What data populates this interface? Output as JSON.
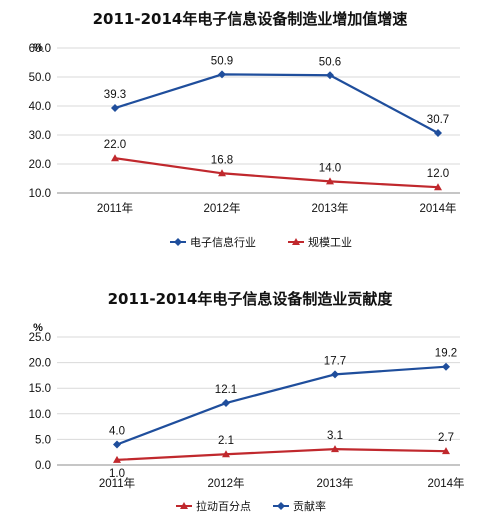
{
  "chart_data": [
    {
      "type": "line",
      "title": "2011-2014年电子信息设备制造业增加值增速",
      "unit": "%",
      "categories": [
        "2011年",
        "2012年",
        "2013年",
        "2014年"
      ],
      "ylim": [
        10,
        60
      ],
      "yticks": [
        "10.0",
        "20.0",
        "30.0",
        "40.0",
        "50.0",
        "60.0"
      ],
      "series": [
        {
          "name": "电子信息行业",
          "color": "#1f4e9c",
          "marker": "diamond",
          "values": [
            39.3,
            50.9,
            50.6,
            30.7
          ],
          "labels": [
            "39.3",
            "50.9",
            "50.6",
            "30.7"
          ]
        },
        {
          "name": "规模工业",
          "color": "#c0282d",
          "marker": "triangle",
          "values": [
            22.0,
            16.8,
            14.0,
            12.0
          ],
          "labels": [
            "22.0",
            "16.8",
            "14.0",
            "12.0"
          ]
        }
      ],
      "legend_order": [
        0,
        1
      ],
      "legend": "bottom",
      "grid": true
    },
    {
      "type": "line",
      "title": "2011-2014年电子信息设备制造业贡献度",
      "unit": "%",
      "categories": [
        "2011年",
        "2012年",
        "2013年",
        "2014年"
      ],
      "ylim": [
        0,
        25
      ],
      "yticks": [
        "0.0",
        "5.0",
        "10.0",
        "15.0",
        "20.0",
        "25.0"
      ],
      "series": [
        {
          "name": "贡献率",
          "color": "#1f4e9c",
          "marker": "diamond",
          "values": [
            4.0,
            12.1,
            17.7,
            19.2
          ],
          "labels": [
            "4.0",
            "12.1",
            "17.7",
            "19.2"
          ]
        },
        {
          "name": "拉动百分点",
          "color": "#c0282d",
          "marker": "triangle",
          "values": [
            1.0,
            2.1,
            3.1,
            2.7
          ],
          "labels": [
            "1.0",
            "2.1",
            "3.1",
            "2.7"
          ]
        }
      ],
      "legend_order": [
        1,
        0
      ],
      "legend": "bottom",
      "grid": true
    }
  ]
}
